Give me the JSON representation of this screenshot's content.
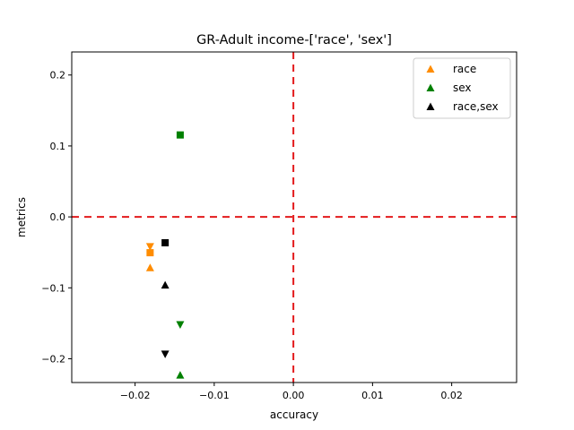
{
  "chart_data": {
    "type": "scatter",
    "title": "GR-Adult income-['race', 'sex']",
    "xlabel": "accuracy",
    "ylabel": "metrics",
    "xlim": [
      -0.028,
      0.0282
    ],
    "ylim": [
      -0.2335,
      0.2325
    ],
    "x_ticks": [
      -0.02,
      -0.01,
      0.0,
      0.01,
      0.02
    ],
    "x_tick_labels": [
      "−0.02",
      "−0.01",
      "0.00",
      "0.01",
      "0.02"
    ],
    "y_ticks": [
      -0.2,
      -0.1,
      0.0,
      0.1,
      0.2
    ],
    "y_tick_labels": [
      "−0.2",
      "−0.1",
      "0.0",
      "0.1",
      "0.2"
    ],
    "grid": false,
    "legend_position": "top-right",
    "reference_lines": {
      "x": 0.0,
      "y": 0.0,
      "color": "#e31a1c",
      "style": "dashed"
    },
    "series": [
      {
        "name": "race",
        "color": "#ff8c00",
        "points": [
          {
            "x": -0.0181,
            "y": -0.0715,
            "marker": "triangle-up"
          },
          {
            "x": -0.0181,
            "y": -0.0505,
            "marker": "square"
          },
          {
            "x": -0.0181,
            "y": -0.042,
            "marker": "triangle-down"
          }
        ]
      },
      {
        "name": "sex",
        "color": "#008000",
        "points": [
          {
            "x": -0.0143,
            "y": 0.1155,
            "marker": "square"
          },
          {
            "x": -0.0143,
            "y": -0.152,
            "marker": "triangle-down"
          },
          {
            "x": -0.0143,
            "y": -0.223,
            "marker": "triangle-up"
          }
        ]
      },
      {
        "name": "race,sex",
        "color": "#000000",
        "points": [
          {
            "x": -0.0162,
            "y": -0.0365,
            "marker": "square"
          },
          {
            "x": -0.0162,
            "y": -0.096,
            "marker": "triangle-up"
          },
          {
            "x": -0.0162,
            "y": -0.1935,
            "marker": "triangle-down"
          }
        ]
      }
    ]
  }
}
